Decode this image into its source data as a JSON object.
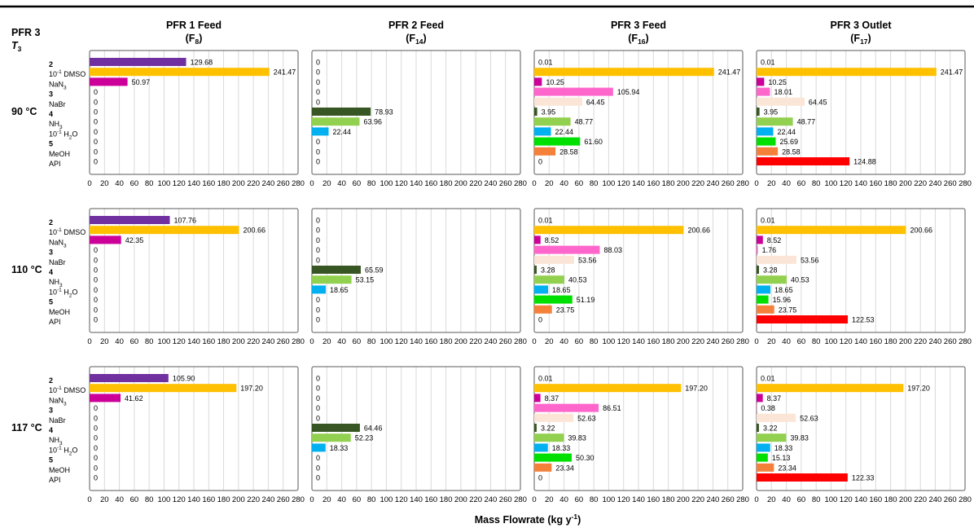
{
  "chart_data": {
    "type": "bar",
    "orientation": "horizontal",
    "corner_title": "PFR 3",
    "corner_var_main": "T",
    "corner_var_sub": "3",
    "xlabel_main": "Mass Flowrate (kg y",
    "xlabel_sup": "-1",
    "xlabel_end": ")",
    "xlim": [
      0,
      280
    ],
    "xticks": [
      "0",
      "20",
      "40",
      "60",
      "80",
      "100",
      "120",
      "140",
      "160",
      "180",
      "200",
      "220",
      "240",
      "260",
      "280"
    ],
    "grid": true,
    "categories": [
      {
        "main": "2",
        "bold": true
      },
      {
        "main": "10",
        "sup": "-1",
        "rest": " DMSO"
      },
      {
        "main": "NaN",
        "sub": "3"
      },
      {
        "main": "3",
        "bold": true
      },
      {
        "main": "NaBr"
      },
      {
        "main": "4",
        "bold": true
      },
      {
        "main": "NH",
        "sub": "3"
      },
      {
        "main": "10",
        "sup": "-1",
        "rest": " H",
        "sub2": "2",
        "rest2": "O"
      },
      {
        "main": "5",
        "bold": true
      },
      {
        "main": "MeOH"
      },
      {
        "main": "API"
      }
    ],
    "category_colors": [
      "#7030a0",
      "#ffc000",
      "#cc0099",
      "#ff66cc",
      "#fbe5d6",
      "#375623",
      "#92d050",
      "#00b0f0",
      "#00e000",
      "#f4803a",
      "#ff0000"
    ],
    "columns": [
      {
        "title": "PFR 1 Feed",
        "sub_main": "(F",
        "sub_sub": "8",
        "sub_end": ")"
      },
      {
        "title": "PFR 2 Feed",
        "sub_main": "(F",
        "sub_sub": "14",
        "sub_end": ")"
      },
      {
        "title": "PFR 3 Feed",
        "sub_main": "(F",
        "sub_sub": "16",
        "sub_end": ")"
      },
      {
        "title": "PFR 3 Outlet",
        "sub_main": "(F",
        "sub_sub": "17",
        "sub_end": ")"
      }
    ],
    "rows": [
      {
        "label": "90 °C",
        "panels": [
          {
            "values": [
              129.68,
              241.47,
              50.97,
              0,
              0,
              0,
              0,
              0,
              0,
              0,
              0
            ],
            "labels": [
              "129.68",
              "241.47",
              "50.97",
              "0",
              "0",
              "0",
              "0",
              "0",
              "0",
              "0",
              "0"
            ]
          },
          {
            "values": [
              0,
              0,
              0,
              0,
              0,
              78.93,
              63.96,
              22.44,
              0,
              0,
              0
            ],
            "labels": [
              "0",
              "0",
              "0",
              "0",
              "0",
              "78.93",
              "63.96",
              "22.44",
              "0",
              "0",
              "0"
            ]
          },
          {
            "values": [
              0.01,
              241.47,
              10.25,
              105.94,
              64.45,
              3.95,
              48.77,
              22.44,
              61.6,
              28.58,
              0
            ],
            "labels": [
              "0.01",
              "241.47",
              "10.25",
              "105.94",
              "64.45",
              "3.95",
              "48.77",
              "22.44",
              "61.60",
              "28.58",
              "0"
            ]
          },
          {
            "values": [
              0.01,
              241.47,
              10.25,
              18.01,
              64.45,
              3.95,
              48.77,
              22.44,
              25.69,
              28.58,
              124.88
            ],
            "labels": [
              "0.01",
              "241.47",
              "10.25",
              "18.01",
              "64.45",
              "3.95",
              "48.77",
              "22.44",
              "25.69",
              "28.58",
              "124.88"
            ]
          }
        ]
      },
      {
        "label": "110 °C",
        "panels": [
          {
            "values": [
              107.76,
              200.66,
              42.35,
              0,
              0,
              0,
              0,
              0,
              0,
              0,
              0
            ],
            "labels": [
              "107.76",
              "200.66",
              "42.35",
              "0",
              "0",
              "0",
              "0",
              "0",
              "0",
              "0",
              "0"
            ]
          },
          {
            "values": [
              0,
              0,
              0,
              0,
              0,
              65.59,
              53.15,
              18.65,
              0,
              0,
              0
            ],
            "labels": [
              "0",
              "0",
              "0",
              "0",
              "0",
              "65.59",
              "53.15",
              "18.65",
              "0",
              "0",
              "0"
            ]
          },
          {
            "values": [
              0.01,
              200.66,
              8.52,
              88.03,
              53.56,
              3.28,
              40.53,
              18.65,
              51.19,
              23.75,
              0
            ],
            "labels": [
              "0.01",
              "200.66",
              "8.52",
              "88.03",
              "53.56",
              "3.28",
              "40.53",
              "18.65",
              "51.19",
              "23.75",
              "0"
            ]
          },
          {
            "values": [
              0.01,
              200.66,
              8.52,
              1.76,
              53.56,
              3.28,
              40.53,
              18.65,
              15.96,
              23.75,
              122.53
            ],
            "labels": [
              "0.01",
              "200.66",
              "8.52",
              "1.76",
              "53.56",
              "3.28",
              "40.53",
              "18.65",
              "15.96",
              "23.75",
              "122.53"
            ]
          }
        ]
      },
      {
        "label": "117 °C",
        "panels": [
          {
            "values": [
              105.9,
              197.2,
              41.62,
              0,
              0,
              0,
              0,
              0,
              0,
              0,
              0
            ],
            "labels": [
              "105.90",
              "197.20",
              "41.62",
              "0",
              "0",
              "0",
              "0",
              "0",
              "0",
              "0",
              "0"
            ]
          },
          {
            "values": [
              0,
              0,
              0,
              0,
              0,
              64.46,
              52.23,
              18.33,
              0,
              0,
              0
            ],
            "labels": [
              "0",
              "0",
              "0",
              "0",
              "0",
              "64.46",
              "52.23",
              "18.33",
              "0",
              "0",
              "0"
            ]
          },
          {
            "values": [
              0.01,
              197.2,
              8.37,
              86.51,
              52.63,
              3.22,
              39.83,
              18.33,
              50.3,
              23.34,
              0
            ],
            "labels": [
              "0.01",
              "197.20",
              "8.37",
              "86.51",
              "52.63",
              "3.22",
              "39.83",
              "18.33",
              "50.30",
              "23.34",
              "0"
            ]
          },
          {
            "values": [
              0.01,
              197.2,
              8.37,
              0.38,
              52.63,
              3.22,
              39.83,
              18.33,
              15.13,
              23.34,
              122.33
            ],
            "labels": [
              "0.01",
              "197.20",
              "8.37",
              "0.38",
              "52.63",
              "3.22",
              "39.83",
              "18.33",
              "15.13",
              "23.34",
              "122.33"
            ]
          }
        ]
      }
    ]
  }
}
